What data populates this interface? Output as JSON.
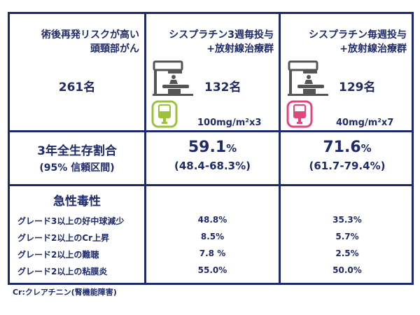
{
  "col1": {
    "title_line1": "術後再発リスクが高い",
    "title_line2": "頭頸部がん",
    "count": "261名"
  },
  "col2": {
    "title_line1": "シスプラチン3週毎投与",
    "title_line2": "+放射線治療群",
    "count": "132名",
    "dose": "100mg/m²x3",
    "icon_color": "#9cc23a"
  },
  "col3": {
    "title_line1": "シスプラチン毎週投与",
    "title_line2": "+放射線治療群",
    "count": "129名",
    "dose": "40mg/m²x7",
    "icon_color": "#e0467c"
  },
  "survival": {
    "label_line1": "3年全生存割合",
    "label_line2": "(95% 信頼区間)",
    "col2_value": "59.1",
    "col2_unit": "%",
    "col2_ci": "(48.4-68.3%)",
    "col3_value": "71.6",
    "col3_unit": "%",
    "col3_ci": "(61.7-79.4%)"
  },
  "toxicity": {
    "header": "急性毒性",
    "rows": [
      {
        "label": "グレード3以上の好中球減少",
        "col2": "48.8%",
        "col3": "35.3%"
      },
      {
        "label": "グレード2以上のCr上昇",
        "col2": "8.5%",
        "col3": "5.7%"
      },
      {
        "label": "グレード2以上の難聴",
        "col2": "7.8 %",
        "col3": "2.5%"
      },
      {
        "label": "グレード2以上の粘膜炎",
        "col2": "55.0%",
        "col3": "50.0%"
      }
    ]
  },
  "footnote": "Cr:クレアチニン(腎機能障害)"
}
